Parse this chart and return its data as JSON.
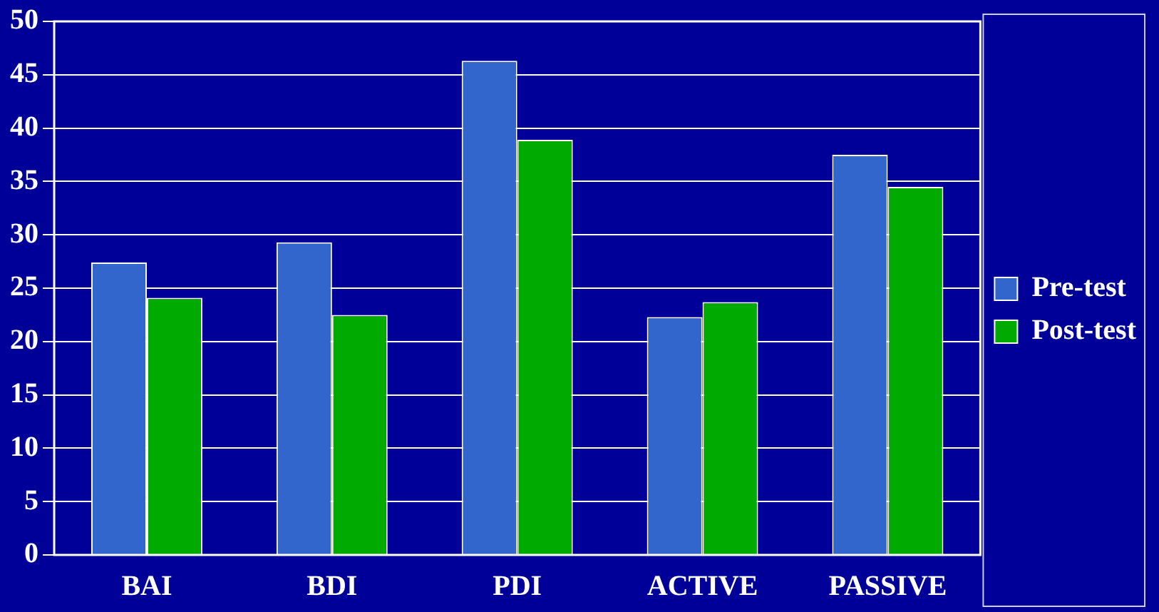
{
  "chart_data": {
    "type": "bar",
    "categories": [
      "BAI",
      "BDI",
      "PDI",
      "ACTIVE",
      "PASSIVE"
    ],
    "series": [
      {
        "name": "Pre-test",
        "color": "#3366cc",
        "values": [
          27.4,
          29.3,
          46.3,
          22.3,
          37.5
        ]
      },
      {
        "name": "Post-test",
        "color": "#00aa00",
        "values": [
          24.1,
          22.5,
          38.9,
          23.7,
          34.5
        ]
      }
    ],
    "ylim": [
      0,
      50
    ],
    "yticks": [
      0,
      5,
      10,
      15,
      20,
      25,
      30,
      35,
      40,
      45,
      50
    ],
    "grid": "y",
    "legend": "right"
  }
}
